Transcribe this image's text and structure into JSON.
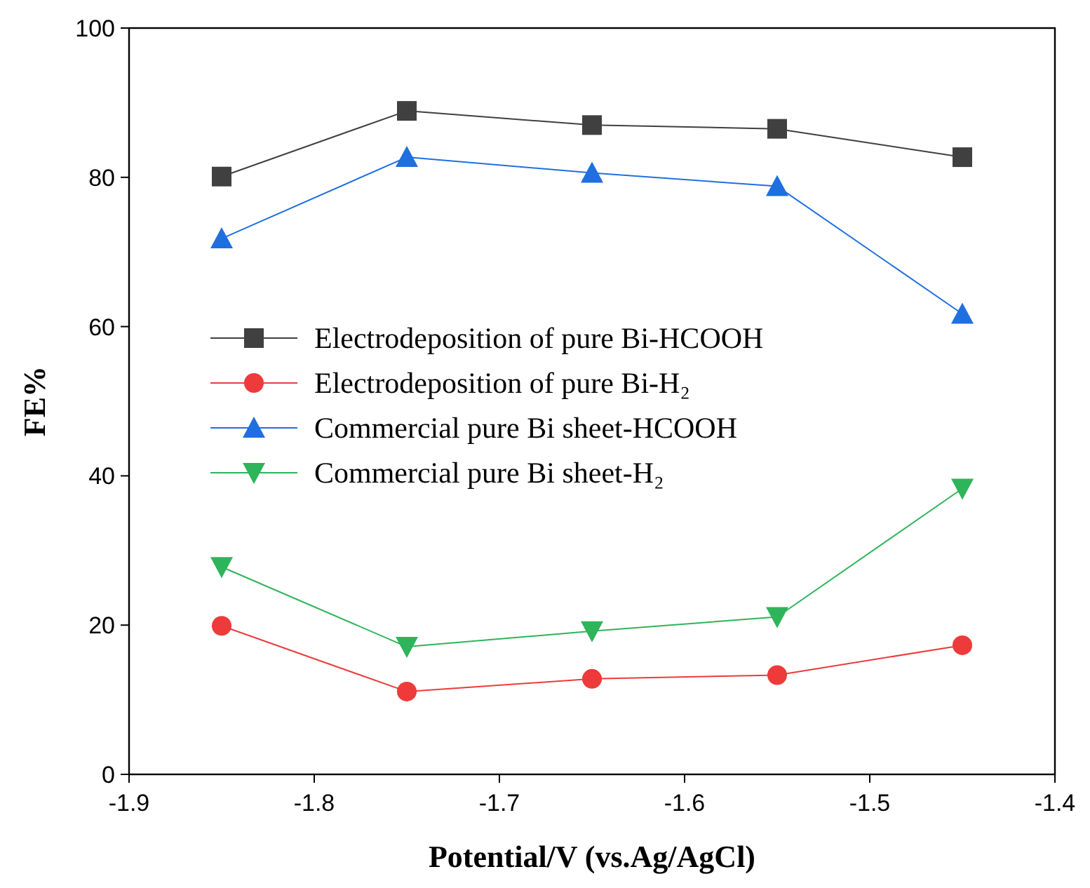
{
  "chart_data": {
    "type": "line",
    "xlabel": "Potential/V (vs.Ag/AgCl)",
    "ylabel": "FE%",
    "x": [
      -1.85,
      -1.75,
      -1.65,
      -1.55,
      -1.45
    ],
    "xlim": [
      -1.9,
      -1.4
    ],
    "xticks": [
      -1.9,
      -1.8,
      -1.7,
      -1.6,
      -1.5,
      -1.4
    ],
    "ylim": [
      0,
      100
    ],
    "yticks": [
      0,
      20,
      40,
      60,
      80,
      100
    ],
    "grid": false,
    "legend": "left",
    "line_style": "solid",
    "series": [
      {
        "name": "Electrodeposition of pure Bi-HCOOH",
        "color": "#404040",
        "marker": "square",
        "values": [
          80.1,
          88.9,
          87.0,
          86.5,
          82.7
        ]
      },
      {
        "name": "Electrodeposition of pure Bi-H₂",
        "color": "#ee3a3a",
        "marker": "circle",
        "values": [
          19.9,
          11.1,
          12.8,
          13.3,
          17.3
        ]
      },
      {
        "name": "Commercial pure Bi sheet-HCOOH",
        "color": "#1f6fe0",
        "marker": "triangle",
        "values": [
          71.8,
          82.7,
          80.6,
          78.8,
          61.7
        ]
      },
      {
        "name": "Commercial pure Bi sheet-H₂",
        "color": "#2eb45a",
        "marker": "triangle-down",
        "values": [
          27.8,
          17.1,
          19.2,
          21.1,
          38.3
        ]
      }
    ]
  }
}
